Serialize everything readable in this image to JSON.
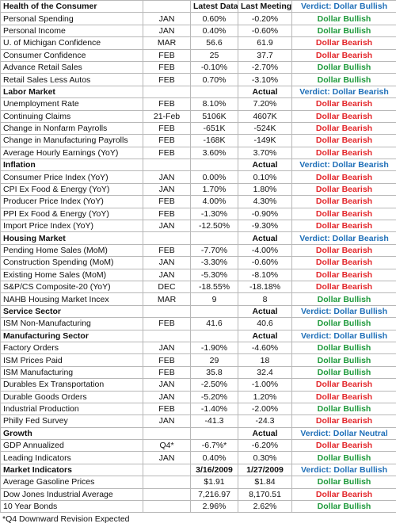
{
  "sections": [
    {
      "title": "Health of the Consumer",
      "latest_label": "Latest Data",
      "previous_label": "Last Meeting",
      "verdict": "Verdict: Dollar Bullish",
      "rows": [
        {
          "indicator": "Personal Spending",
          "period": "JAN",
          "latest": "0.60%",
          "previous": "-0.20%",
          "verdict": "Dollar Bullish",
          "color": "#1f9a3c"
        },
        {
          "indicator": "Personal Income",
          "period": "JAN",
          "latest": "0.40%",
          "previous": "-0.60%",
          "verdict": "Dollar Bullish",
          "color": "#1f9a3c"
        },
        {
          "indicator": "U. of Michigan Confidence",
          "period": "MAR",
          "latest": "56.6",
          "previous": "61.9",
          "verdict": "Dollar Bearish",
          "color": "#e3262a"
        },
        {
          "indicator": "Consumer Confidence",
          "period": "FEB",
          "latest": "25",
          "previous": "37.7",
          "verdict": "Dollar Bearish",
          "color": "#e3262a"
        },
        {
          "indicator": "Advance Retail Sales",
          "period": "FEB",
          "latest": "-0.10%",
          "previous": "-2.70%",
          "verdict": "Dollar Bullish",
          "color": "#1f9a3c"
        },
        {
          "indicator": "Retail Sales Less Autos",
          "period": "FEB",
          "latest": "0.70%",
          "previous": "-3.10%",
          "verdict": "Dollar Bullish",
          "color": "#1f9a3c"
        }
      ]
    },
    {
      "title": "Labor Market",
      "previous_label": "Actual",
      "verdict": "Verdict: Dollar Bearish",
      "rows": [
        {
          "indicator": "Unemployment Rate",
          "period": "FEB",
          "latest": "8.10%",
          "previous": "7.20%",
          "verdict": "Dollar Bearish",
          "color": "#e3262a"
        },
        {
          "indicator": "Continuing Claims",
          "period": "21-Feb",
          "latest": "5106K",
          "previous": "4607K",
          "verdict": "Dollar Bearish",
          "color": "#e3262a"
        },
        {
          "indicator": "Change in Nonfarm Payrolls",
          "period": "FEB",
          "latest": "-651K",
          "previous": "-524K",
          "verdict": "Dollar Bearish",
          "color": "#e3262a"
        },
        {
          "indicator": "Change in Manufacturing Payrolls",
          "period": "FEB",
          "latest": "-168K",
          "previous": "-149K",
          "verdict": "Dollar Bearish",
          "color": "#e3262a"
        },
        {
          "indicator": "Average Hourly Earnings (YoY)",
          "period": "FEB",
          "latest": "3.60%",
          "previous": "3.70%",
          "verdict": "Dollar Bearish",
          "color": "#e3262a"
        }
      ]
    },
    {
      "title": "Inflation",
      "previous_label": "Actual",
      "verdict": "Verdict: Dollar Bearish",
      "rows": [
        {
          "indicator": "Consumer Price Index (YoY)",
          "period": "JAN",
          "latest": "0.00%",
          "previous": "0.10%",
          "verdict": "Dollar Bearish",
          "color": "#e3262a"
        },
        {
          "indicator": "CPI Ex Food & Energy (YoY)",
          "period": "JAN",
          "latest": "1.70%",
          "previous": "1.80%",
          "verdict": "Dollar Bearish",
          "color": "#e3262a"
        },
        {
          "indicator": "Producer Price Index (YoY)",
          "period": "FEB",
          "latest": "4.00%",
          "previous": "4.30%",
          "verdict": "Dollar Bearish",
          "color": "#e3262a"
        },
        {
          "indicator": "PPI Ex Food & Energy (YoY)",
          "period": "FEB",
          "latest": "-1.30%",
          "previous": "-0.90%",
          "verdict": "Dollar Bearish",
          "color": "#e3262a"
        },
        {
          "indicator": "Import Price Index (YoY)",
          "period": "JAN",
          "latest": "-12.50%",
          "previous": "-9.30%",
          "verdict": "Dollar Bearish",
          "color": "#e3262a"
        }
      ]
    },
    {
      "title": "Housing Market",
      "previous_label": "Actual",
      "verdict": "Verdict: Dollar Bearish",
      "rows": [
        {
          "indicator": "Pending Home Sales (MoM)",
          "period": "FEB",
          "latest": "-7.70%",
          "previous": "-4.00%",
          "verdict": "Dollar Bearish",
          "color": "#e3262a"
        },
        {
          "indicator": "Construction Spending (MoM)",
          "period": "JAN",
          "latest": "-3.30%",
          "previous": "-0.60%",
          "verdict": "Dollar Bearish",
          "color": "#e3262a"
        },
        {
          "indicator": "Existing Home Sales (MoM)",
          "period": "JAN",
          "latest": "-5.30%",
          "previous": "-8.10%",
          "verdict": "Dollar Bearish",
          "color": "#e3262a"
        },
        {
          "indicator": "S&P/CS Composite-20 (YoY)",
          "period": "DEC",
          "latest": "-18.55%",
          "previous": "-18.18%",
          "verdict": "Dollar Bearish",
          "color": "#e3262a"
        },
        {
          "indicator": "NAHB Housing Market Incex",
          "period": "MAR",
          "latest": "9",
          "previous": "8",
          "verdict": "Dollar Bullish",
          "color": "#1f9a3c"
        }
      ]
    },
    {
      "title": "Service Sector",
      "previous_label": "Actual",
      "verdict": "Verdict: Dollar Bullish",
      "rows": [
        {
          "indicator": "ISM Non-Manufacturing",
          "period": "FEB",
          "latest": "41.6",
          "previous": "40.6",
          "verdict": "Dollar Bullish",
          "color": "#1f9a3c"
        }
      ]
    },
    {
      "title": "Manufacturing Sector",
      "previous_label": "Actual",
      "verdict": "Verdict: Dollar Bullish",
      "rows": [
        {
          "indicator": "Factory Orders",
          "period": "JAN",
          "latest": "-1.90%",
          "previous": "-4.60%",
          "verdict": "Dollar Bullish",
          "color": "#1f9a3c"
        },
        {
          "indicator": "ISM Prices Paid",
          "period": "FEB",
          "latest": "29",
          "previous": "18",
          "verdict": "Dollar Bullish",
          "color": "#1f9a3c"
        },
        {
          "indicator": "ISM Manufacturing",
          "period": "FEB",
          "latest": "35.8",
          "previous": "32.4",
          "verdict": "Dollar Bullish",
          "color": "#1f9a3c"
        },
        {
          "indicator": "Durables Ex Transportation",
          "period": "JAN",
          "latest": "-2.50%",
          "previous": "-1.00%",
          "verdict": "Dollar Bearish",
          "color": "#e3262a"
        },
        {
          "indicator": "Durable Goods Orders",
          "period": "JAN",
          "latest": "-5.20%",
          "previous": "1.20%",
          "verdict": "Dollar Bearish",
          "color": "#e3262a"
        },
        {
          "indicator": "Industrial Production",
          "period": "FEB",
          "latest": "-1.40%",
          "previous": "-2.00%",
          "verdict": "Dollar Bullish",
          "color": "#1f9a3c"
        },
        {
          "indicator": "Philly Fed Survey",
          "period": "JAN",
          "latest": "-41.3",
          "previous": "-24.3",
          "verdict": "Dollar Bearish",
          "color": "#e3262a"
        }
      ]
    },
    {
      "title": "Growth",
      "previous_label": "Actual",
      "verdict": "Verdict: Dollar Neutral",
      "rows": [
        {
          "indicator": "GDP Annualized",
          "period": "Q4*",
          "latest": "-6.7%*",
          "previous": "-6.20%",
          "verdict": "Dollar Bearish",
          "color": "#e3262a"
        },
        {
          "indicator": "Leading Indicators",
          "period": "JAN",
          "latest": "0.40%",
          "previous": "0.30%",
          "verdict": "Dollar Bullish",
          "color": "#1f9a3c"
        }
      ]
    },
    {
      "title": "Market Indicators",
      "latest_label": "3/16/2009",
      "previous_label": "1/27/2009",
      "verdict": "Verdict: Dollar Bullish",
      "rows": [
        {
          "indicator": "Average Gasoline Prices",
          "latest": "$1.91",
          "previous": "$1.84",
          "verdict": "Dollar Bullish",
          "color": "#1f9a3c"
        },
        {
          "indicator": "Dow Jones Industrial Average",
          "latest": "7,216.97",
          "previous": "8,170.51",
          "verdict": "Dollar Bearish",
          "color": "#e3262a"
        },
        {
          "indicator": "10 Year Bonds",
          "latest": "2.96%",
          "previous": "2.62%",
          "verdict": "Dollar Bullish",
          "color": "#1f9a3c"
        }
      ]
    }
  ],
  "footnote": "*Q4 Downward Revision Expected",
  "header_verdict_color": "#1f6fb8"
}
